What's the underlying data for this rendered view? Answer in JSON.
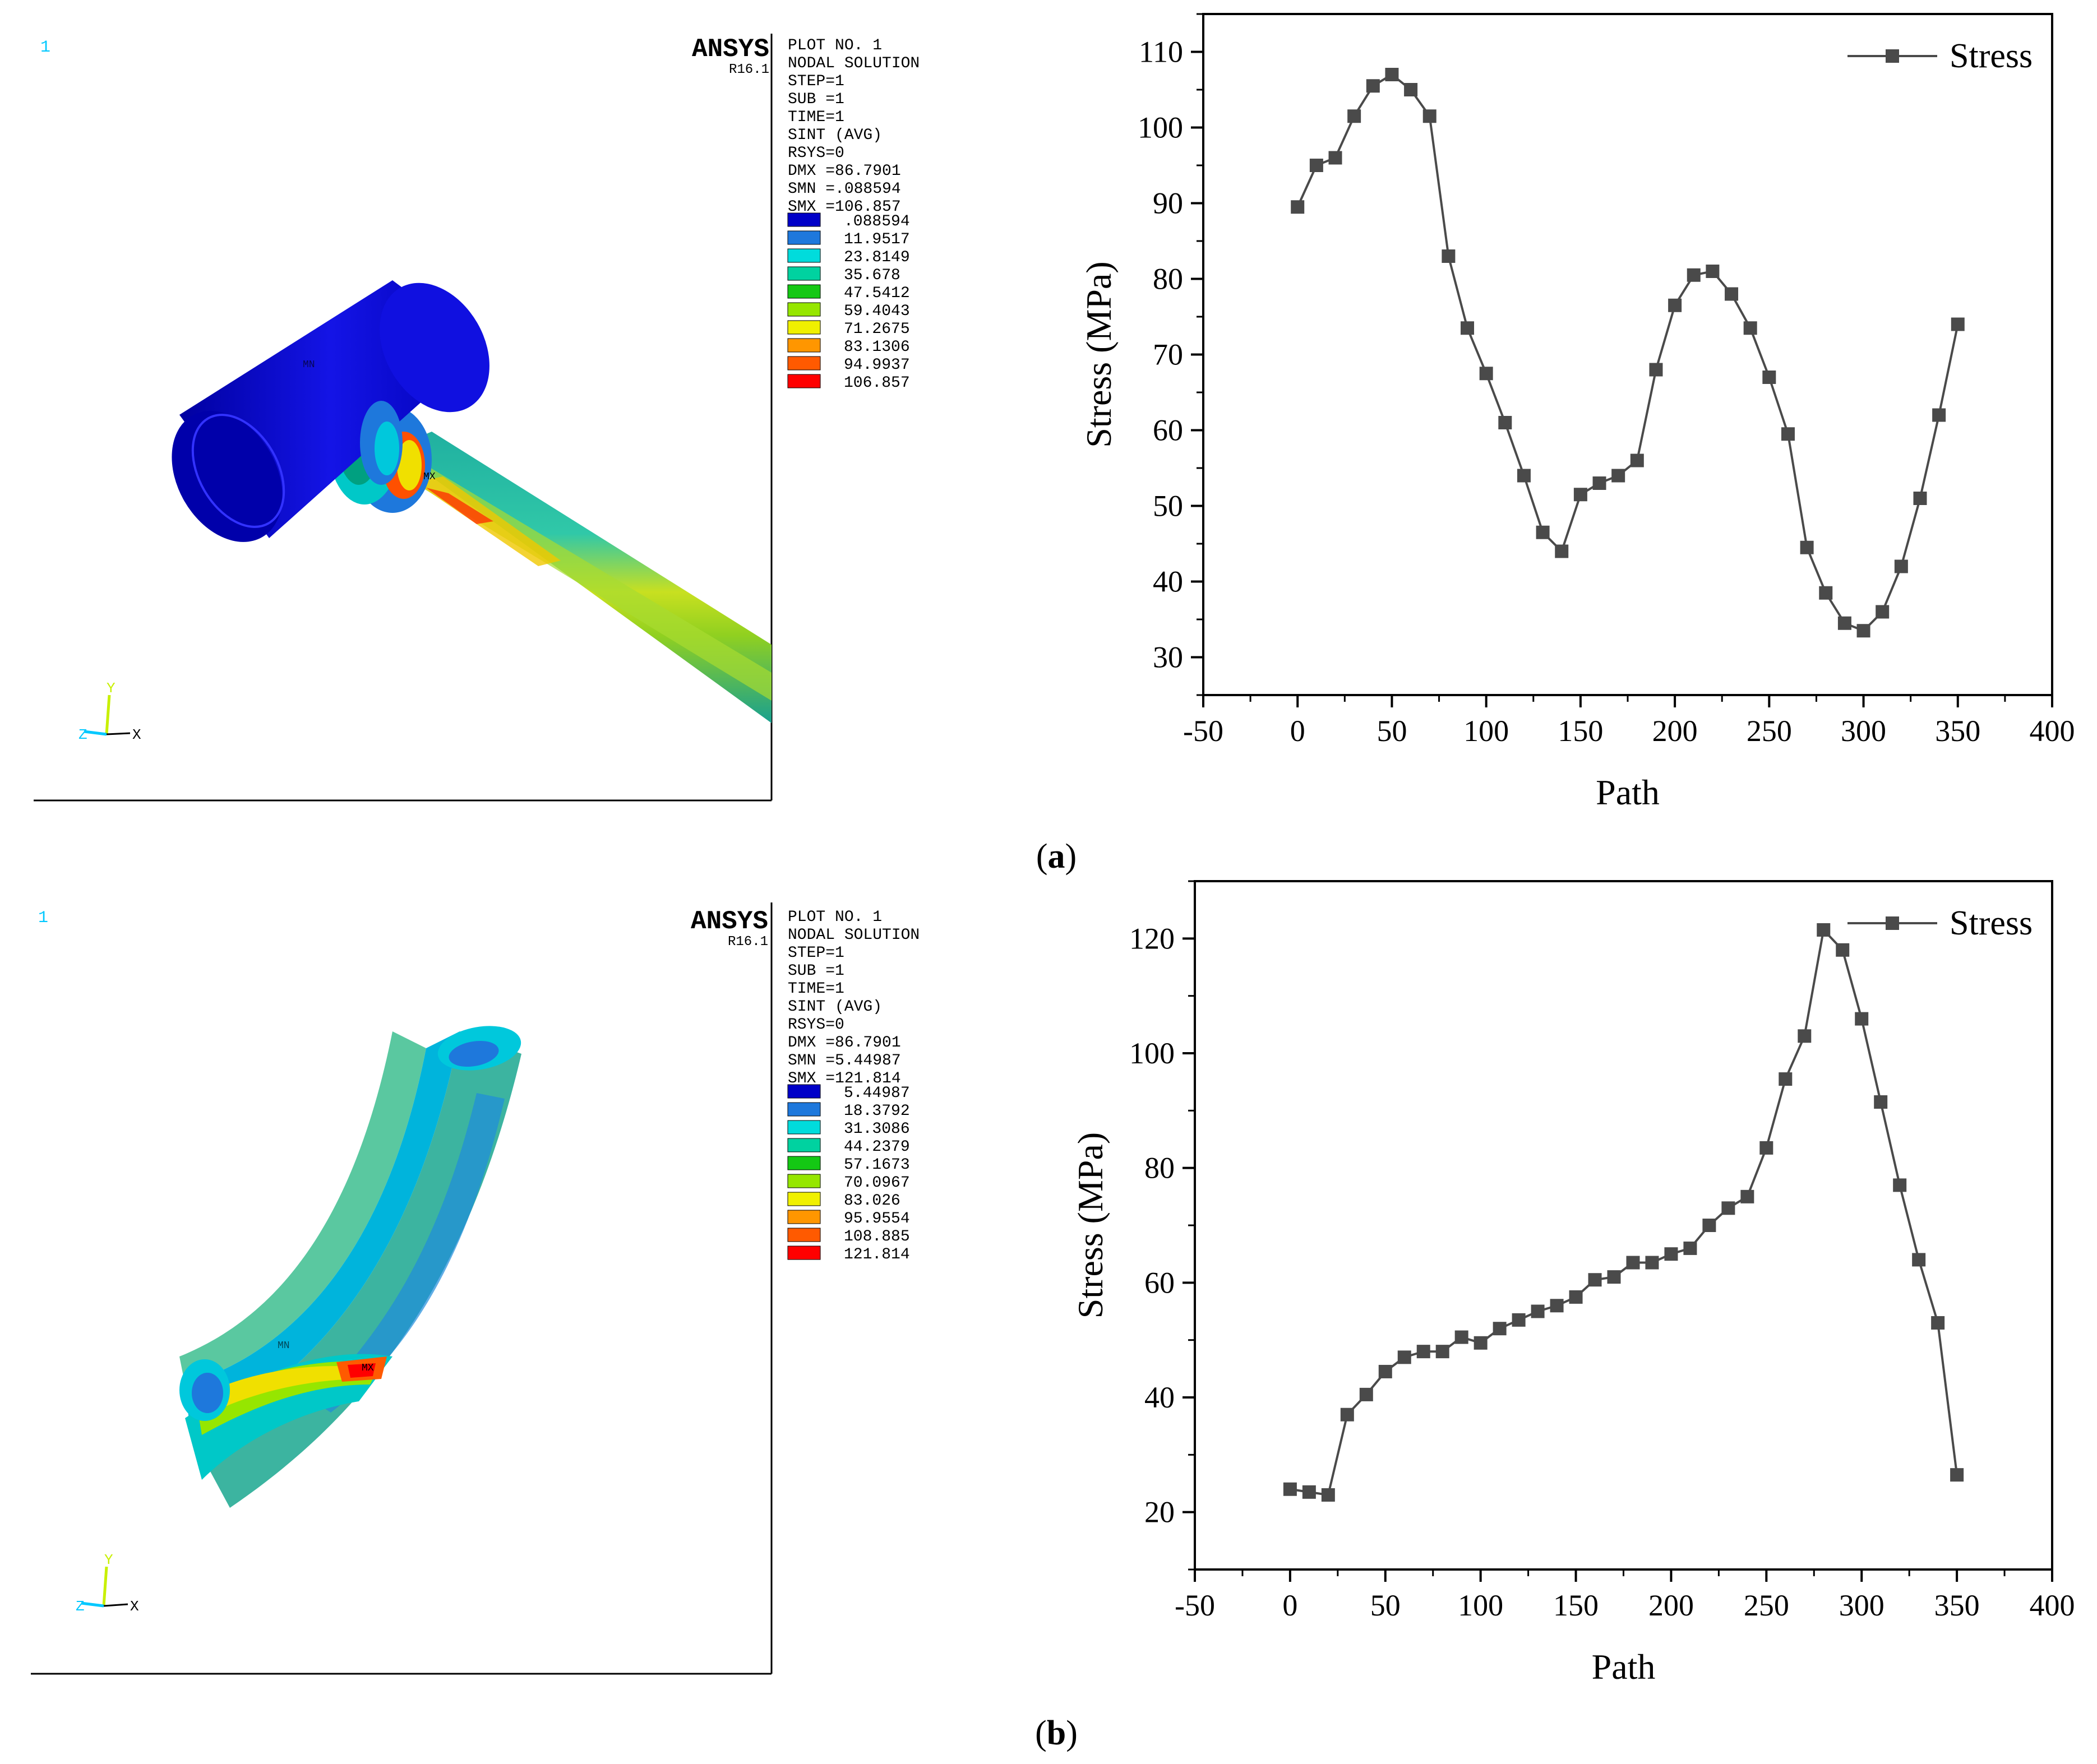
{
  "figure": {
    "panel_a_label_open": "(",
    "panel_a_label": "a",
    "panel_a_label_close": ")",
    "panel_b_label_open": "(",
    "panel_b_label": "b",
    "panel_b_label_close": ")"
  },
  "ansys_panels": [
    {
      "window_number": "1",
      "brand": "ANSYS",
      "version": "R16.1",
      "info_lines": [
        "PLOT NO.   1",
        "NODAL SOLUTION",
        "STEP=1",
        "SUB =1",
        "TIME=1",
        "SINT       (AVG)",
        "RSYS=0",
        "DMX =86.7901",
        "SMN =.088594",
        "SMX =106.857"
      ],
      "legend_values": [
        ".088594",
        "11.9517",
        "23.8149",
        "35.678",
        "47.5412",
        "59.4043",
        "71.2675",
        "83.1306",
        "94.9937",
        "106.857"
      ],
      "legend_colors": [
        "#0000c8",
        "#1e78dc",
        "#00dcdc",
        "#00d2a0",
        "#14c814",
        "#96e600",
        "#f0f000",
        "#ff9600",
        "#ff5a00",
        "#ff0000"
      ],
      "triad": {
        "y": "Y",
        "z": "Z",
        "x": "X"
      },
      "mx_mark": "MX",
      "mn_mark": "MN"
    },
    {
      "window_number": "1",
      "brand": "ANSYS",
      "version": "R16.1",
      "info_lines": [
        "PLOT NO.   1",
        "NODAL SOLUTION",
        "STEP=1",
        "SUB =1",
        "TIME=1",
        "SINT       (AVG)",
        "RSYS=0",
        "DMX =86.7901",
        "SMN =5.44987",
        "SMX =121.814"
      ],
      "legend_values": [
        "5.44987",
        "18.3792",
        "31.3086",
        "44.2379",
        "57.1673",
        "70.0967",
        "83.026",
        "95.9554",
        "108.885",
        "121.814"
      ],
      "legend_colors": [
        "#0000c8",
        "#1e78dc",
        "#00dcdc",
        "#00d2a0",
        "#14c814",
        "#96e600",
        "#f0f000",
        "#ff9600",
        "#ff5a00",
        "#ff0000"
      ],
      "triad": {
        "y": "Y",
        "z": "Z",
        "x": "X"
      },
      "mx_mark": "MX",
      "mn_mark": "MN"
    }
  ],
  "chart_data": [
    {
      "type": "line",
      "panel": "a",
      "title": "",
      "xlabel": "Path",
      "ylabel": "Stress (MPa)",
      "xlim": [
        -50,
        400
      ],
      "ylim": [
        25,
        115
      ],
      "xticks": [
        -50,
        0,
        50,
        100,
        150,
        200,
        250,
        300,
        350,
        400
      ],
      "yticks": [
        30,
        40,
        50,
        60,
        70,
        80,
        90,
        100,
        110
      ],
      "legend": "top-right",
      "grid": false,
      "series": [
        {
          "name": "Stress",
          "color": "#4a4a4a",
          "x": [
            0,
            10,
            20,
            30,
            40,
            50,
            60,
            70,
            80,
            90,
            100,
            110,
            120,
            130,
            140,
            150,
            160,
            170,
            180,
            190,
            200,
            210,
            220,
            230,
            240,
            250,
            260,
            270,
            280,
            290,
            300,
            310,
            320,
            330,
            340,
            350
          ],
          "values": [
            89.5,
            95,
            96,
            101.5,
            105.5,
            107,
            105,
            101.5,
            83,
            73.5,
            67.5,
            61,
            54,
            46.5,
            44,
            51.5,
            53,
            54,
            56,
            68,
            76.5,
            80.5,
            81,
            78,
            73.5,
            67,
            59.5,
            44.5,
            38.5,
            34.5,
            33.5,
            36,
            42,
            51,
            62,
            74
          ]
        }
      ]
    },
    {
      "type": "line",
      "panel": "b",
      "title": "",
      "xlabel": "Path",
      "ylabel": "Stress (MPa)",
      "xlim": [
        -50,
        400
      ],
      "ylim": [
        10,
        130
      ],
      "xticks": [
        -50,
        0,
        50,
        100,
        150,
        200,
        250,
        300,
        350,
        400
      ],
      "yticks": [
        20,
        40,
        60,
        80,
        100,
        120
      ],
      "legend": "top-right",
      "grid": false,
      "series": [
        {
          "name": "Stress",
          "color": "#4a4a4a",
          "x": [
            0,
            10,
            20,
            30,
            40,
            50,
            60,
            70,
            80,
            90,
            100,
            110,
            120,
            130,
            140,
            150,
            160,
            170,
            180,
            190,
            200,
            210,
            220,
            230,
            240,
            250,
            260,
            270,
            280,
            290,
            300,
            310,
            320,
            330,
            340,
            350
          ],
          "values": [
            24,
            23.5,
            23,
            37,
            40.5,
            44.5,
            47,
            48,
            48,
            50.5,
            49.5,
            52,
            53.5,
            55,
            56,
            57.5,
            60.5,
            61,
            63.5,
            63.5,
            65,
            66,
            70,
            73,
            75,
            83.5,
            95.5,
            103,
            121.5,
            118,
            106,
            91.5,
            77,
            64,
            53,
            26.5
          ]
        }
      ]
    }
  ]
}
